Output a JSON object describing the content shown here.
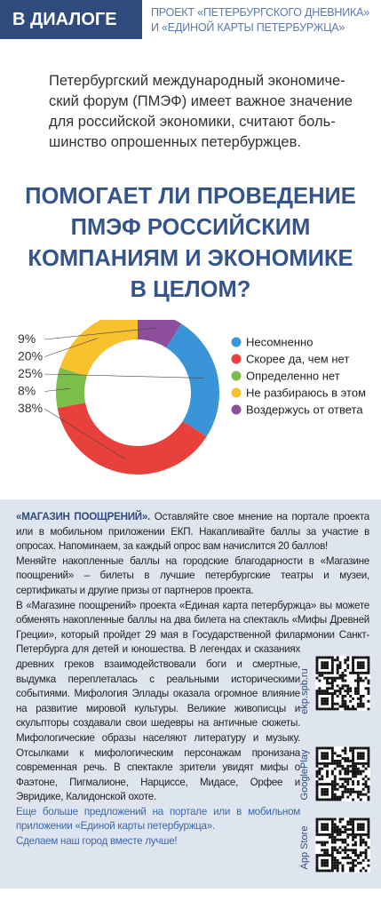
{
  "header": {
    "tag": "В ДИАЛОГЕ",
    "subtitle": [
      "ПРОЕКТ «ПЕТЕРБУРГСКОГО ДНЕВНИКА»",
      "И «ЕДИНОЙ КАРТЫ ПЕТЕРБУРЖЦА»"
    ]
  },
  "intro": [
    "Петербургский международный экономиче-",
    "ский форум (ПМЭФ) имеет важное значение",
    "для российской экономики, считают боль-",
    "шинство опрошенных петербуржцев."
  ],
  "question": [
    "ПОМОГАЕТ ЛИ ПРОВЕДЕНИЕ",
    "ПМЭФ РОССИЙСКИМ",
    "КОМПАНИЯМ И ЭКОНОМИКЕ",
    "В ЦЕЛОМ?"
  ],
  "chart_data": {
    "type": "pie",
    "donut": true,
    "categories": [
      "Несомненно",
      "Скорее да, чем нет",
      "Определенно нет",
      "Не разбираюсь в этом",
      "Воздержусь от ответа"
    ],
    "values": [
      25,
      38,
      8,
      20,
      9
    ],
    "value_labels": [
      "25%",
      "38%",
      "8%",
      "20%",
      "9%"
    ],
    "colors": [
      "#3a95d8",
      "#e8403a",
      "#7dbd4c",
      "#f8c12e",
      "#8d4e9c"
    ]
  },
  "text": {
    "lead": "«МАГАЗИН ПООЩРЕНИЙ».",
    "paragraphs": [
      "Оставляйте свое мнение на портале проекта или в мобильном приложении ЕКП. Накапливайте баллы за участие в опросах. Напоминаем, за каждый опрос вам начислится 20 баллов!",
      "Меняйте накопленные баллы на городские благодарности в «Магазине поощрений» – билеты в лучшие петербургские театры и музеи, сертификаты и другие призы от партнеров проекта.",
      "В «Магазине поощрений» проекта «Единая карта петербуржца» вы можете обменять накопленные баллы на два билета на спектакль «Мифы Древней Греции», который пройдет 29 мая в Государственной филармонии Санкт-Петербурга для детей и юношества. В легендах и сказаниях древних греков взаимодействовали боги и смертные, выдумка переплеталась с реальными историческими событиями. Мифология Эллады оказала огромное влияние на развитие мировой культуры. Великие живописцы и скульпторы создавали свои шедевры на античные сюжеты. Мифологические образы населяют литературу и музыку. Отсылками к мифологическим персонажам пронизана современная речь. В спектакле зрители увидят мифы о Фаэтоне, Пигмалионе, Нарциссе, Мидасе, Орфее и Эвридике, Калидонской охоте."
    ],
    "closing": [
      "Еще больше предложений на портале или в мобильном приложении «Единой карты петербуржца».",
      "Сделаем наш город вместе лучше!"
    ]
  },
  "qr_labels": [
    "ekp.spb.ru",
    "GooglePlay",
    "App Store"
  ]
}
